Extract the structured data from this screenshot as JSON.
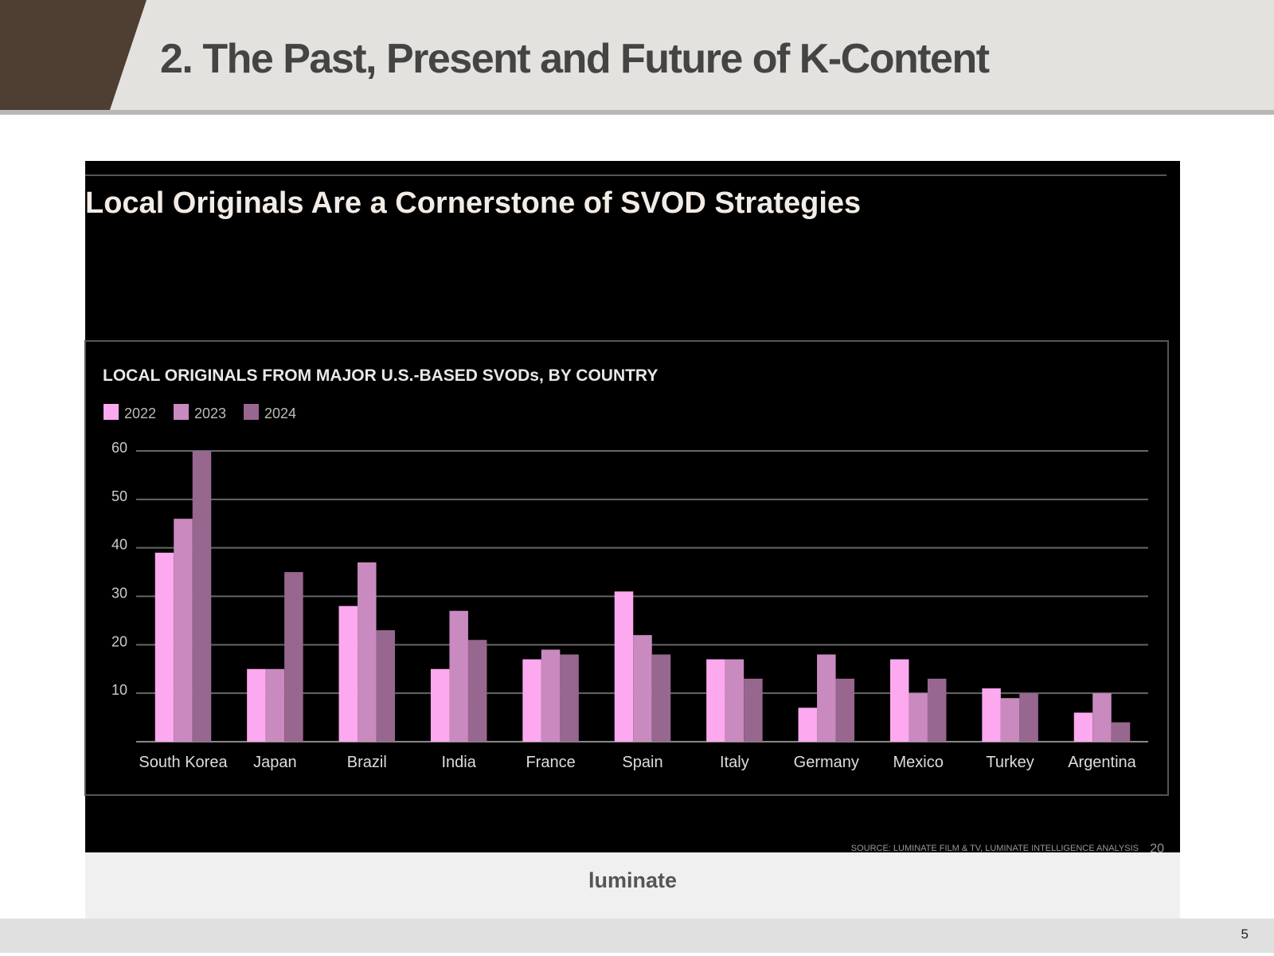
{
  "slide": {
    "title": "2. The Past, Present and Future of K-Content",
    "page_number": "5"
  },
  "panel": {
    "headline": "Local Originals Are a Cornerstone of SVOD Strategies",
    "source": "SOURCE: LUMINATE FILM & TV, LUMINATE INTELLIGENCE ANALYSIS",
    "panel_page": "20",
    "brand": "luminate"
  },
  "chart_data": {
    "type": "bar",
    "title": "LOCAL ORIGINALS FROM MAJOR U.S.-BASED SVODs, BY COUNTRY",
    "categories": [
      "South Korea",
      "Japan",
      "Brazil",
      "India",
      "France",
      "Spain",
      "Italy",
      "Germany",
      "Mexico",
      "Turkey",
      "Argentina"
    ],
    "series": [
      {
        "name": "2022",
        "color": "#fda9f0",
        "values": [
          39,
          15,
          28,
          15,
          17,
          31,
          17,
          7,
          17,
          11,
          6
        ]
      },
      {
        "name": "2023",
        "color": "#c98ac0",
        "values": [
          46,
          15,
          37,
          27,
          19,
          22,
          17,
          18,
          10,
          9,
          10
        ]
      },
      {
        "name": "2024",
        "color": "#98678f",
        "values": [
          60,
          35,
          23,
          21,
          18,
          18,
          13,
          13,
          13,
          10,
          4
        ]
      }
    ],
    "yticks": [
      "10",
      "20",
      "30",
      "40",
      "50",
      "60"
    ],
    "ylim": [
      0,
      60
    ],
    "grid": true,
    "legend": "top-left",
    "background": "#000000"
  }
}
